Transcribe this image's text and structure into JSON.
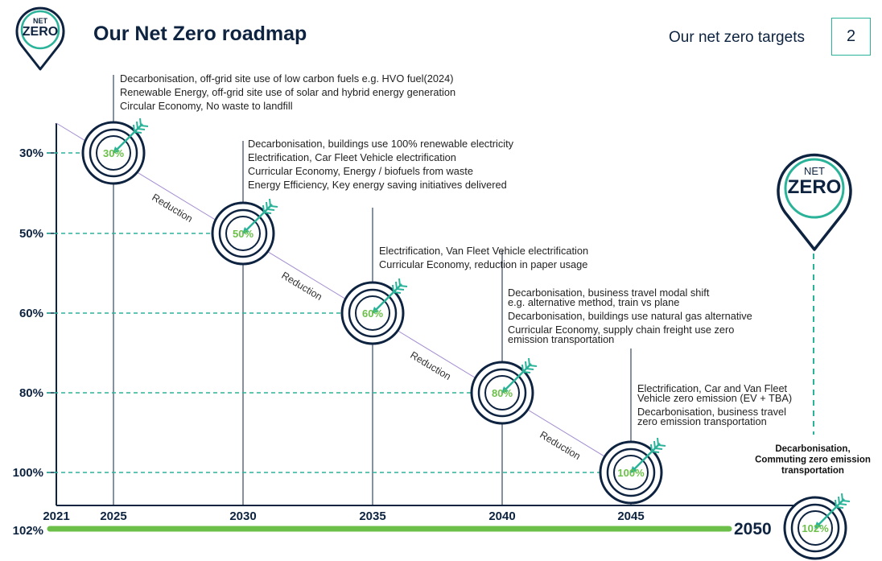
{
  "header": {
    "title": "Our Net Zero roadmap",
    "section": "Our net zero targets",
    "page_number": "2"
  },
  "logo": {
    "line1": "NET",
    "line2": "ZERO"
  },
  "colors": {
    "navy": "#0d2340",
    "teal": "#2bb39a",
    "green": "#6cc04a",
    "purple": "#a58fd1"
  },
  "chart_data": {
    "type": "line",
    "x_ticks": [
      "2021",
      "2025",
      "2030",
      "2035",
      "2040",
      "2045"
    ],
    "y_ticks": [
      "30%",
      "50%",
      "60%",
      "80%",
      "100%"
    ],
    "end_year": "2050",
    "final_level": "102%",
    "reduction_label": "Reduction",
    "milestones": [
      {
        "year": "2025",
        "value": "30%",
        "lines": [
          "Decarbonisation, off-grid site use of low carbon fuels e.g. HVO fuel(2024)",
          "Renewable Energy, off-grid site use of solar and hybrid energy generation",
          "Circular Economy, No waste to landfill"
        ]
      },
      {
        "year": "2030",
        "value": "50%",
        "lines": [
          "Decarbonisation, buildings use 100% renewable electricity",
          "Electrification, Car Fleet Vehicle electrification",
          "Curricular Economy, Energy / biofuels from waste",
          "Energy Efficiency, Key energy saving initiatives delivered"
        ]
      },
      {
        "year": "2035",
        "value": "60%",
        "lines": [
          "Electrification, Van Fleet Vehicle electrification",
          "Curricular Economy, reduction in paper usage"
        ]
      },
      {
        "year": "2040",
        "value": "80%",
        "lines": [
          "Decarbonisation, business travel modal shift",
          "e.g. alternative method, train vs plane",
          "Decarbonisation, buildings use natural gas alternative",
          "Curricular Economy, supply chain freight use zero",
          "emission transportation"
        ]
      },
      {
        "year": "2045",
        "value": "100%",
        "lines": [
          "Electrification, Car and Van Fleet",
          "Vehicle zero emission (EV + TBA)",
          "Decarbonisation, business travel",
          "zero emission transportation"
        ]
      },
      {
        "year": "2050",
        "value": "102%",
        "lines": [
          "Decarbonisation,",
          "Commuting zero emission",
          "transportation"
        ]
      }
    ]
  }
}
